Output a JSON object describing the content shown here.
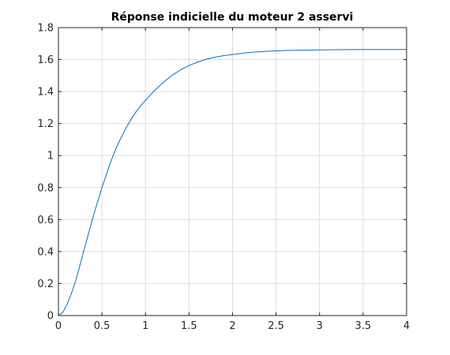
{
  "chart_data": {
    "type": "line",
    "title": "Réponse indicielle du moteur 2 asservi",
    "xlabel": "",
    "ylabel": "",
    "xlim": [
      0,
      4
    ],
    "ylim": [
      0,
      1.8
    ],
    "xticks": [
      0,
      0.5,
      1,
      1.5,
      2,
      2.5,
      3,
      3.5,
      4
    ],
    "xtick_labels": [
      "0",
      "0.5",
      "1",
      "1.5",
      "2",
      "2.5",
      "3",
      "3.5",
      "4"
    ],
    "yticks": [
      0,
      0.2,
      0.4,
      0.6,
      0.8,
      1,
      1.2,
      1.4,
      1.6,
      1.8
    ],
    "ytick_labels": [
      "0",
      "0.2",
      "0.4",
      "0.6",
      "0.8",
      "1",
      "1.2",
      "1.4",
      "1.6",
      "1.8"
    ],
    "grid": true,
    "series": [
      {
        "color": "#0072bd",
        "x": [
          0,
          0.05,
          0.1,
          0.15,
          0.2,
          0.25,
          0.3,
          0.35,
          0.4,
          0.45,
          0.5,
          0.55,
          0.6,
          0.65,
          0.7,
          0.75,
          0.8,
          0.85,
          0.9,
          0.95,
          1.0,
          1.1,
          1.2,
          1.3,
          1.4,
          1.5,
          1.6,
          1.7,
          1.8,
          1.9,
          2.0,
          2.2,
          2.4,
          2.6,
          2.8,
          3.0,
          3.2,
          3.5,
          4.0
        ],
        "y": [
          0,
          0.02,
          0.07,
          0.14,
          0.22,
          0.32,
          0.42,
          0.52,
          0.62,
          0.71,
          0.8,
          0.88,
          0.96,
          1.03,
          1.09,
          1.145,
          1.195,
          1.24,
          1.28,
          1.315,
          1.345,
          1.405,
          1.455,
          1.5,
          1.535,
          1.563,
          1.585,
          1.602,
          1.615,
          1.625,
          1.632,
          1.645,
          1.652,
          1.657,
          1.659,
          1.661,
          1.662,
          1.663,
          1.663
        ]
      }
    ]
  }
}
